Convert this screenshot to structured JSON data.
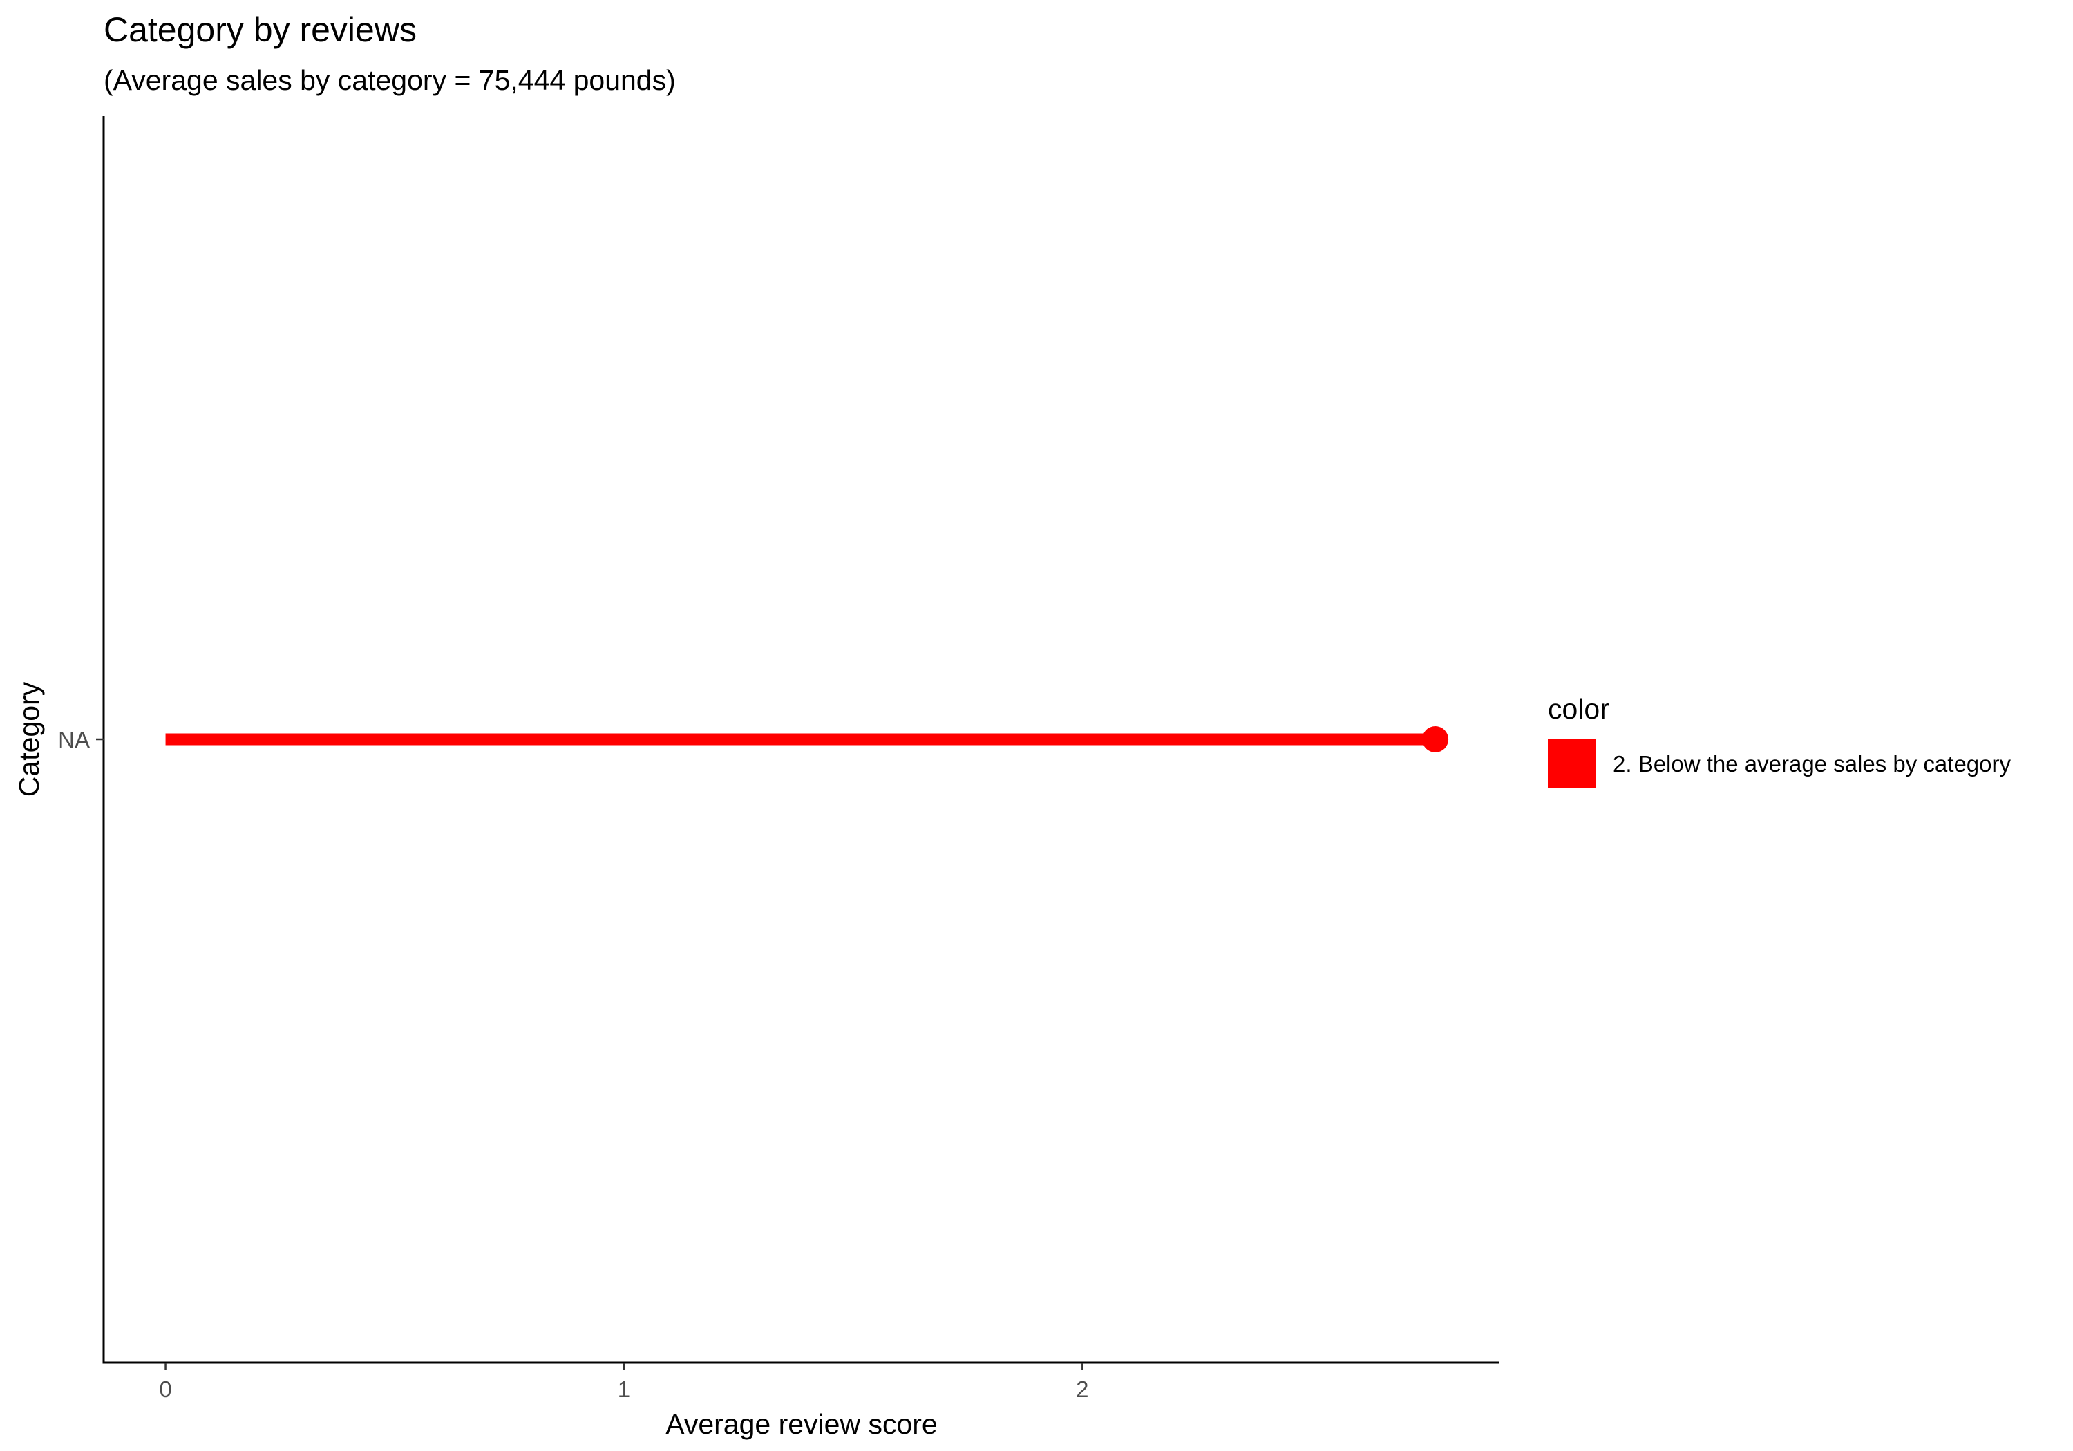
{
  "chart_data": {
    "type": "lollipop",
    "title": "Category by reviews",
    "subtitle": "(Average sales by category = 75,444 pounds)",
    "xlabel": "Average review score",
    "ylabel": "Category",
    "categories": [
      "NA"
    ],
    "values": [
      2.77
    ],
    "x_ticks": [
      0,
      1,
      2
    ],
    "xlim": [
      -0.135,
      2.91
    ],
    "grid": false,
    "legend": {
      "title": "color",
      "position": "right",
      "entries": [
        {
          "label": "2. Below the average sales by category",
          "color": "#ff0000"
        }
      ]
    },
    "series_color": "#ff0000"
  }
}
